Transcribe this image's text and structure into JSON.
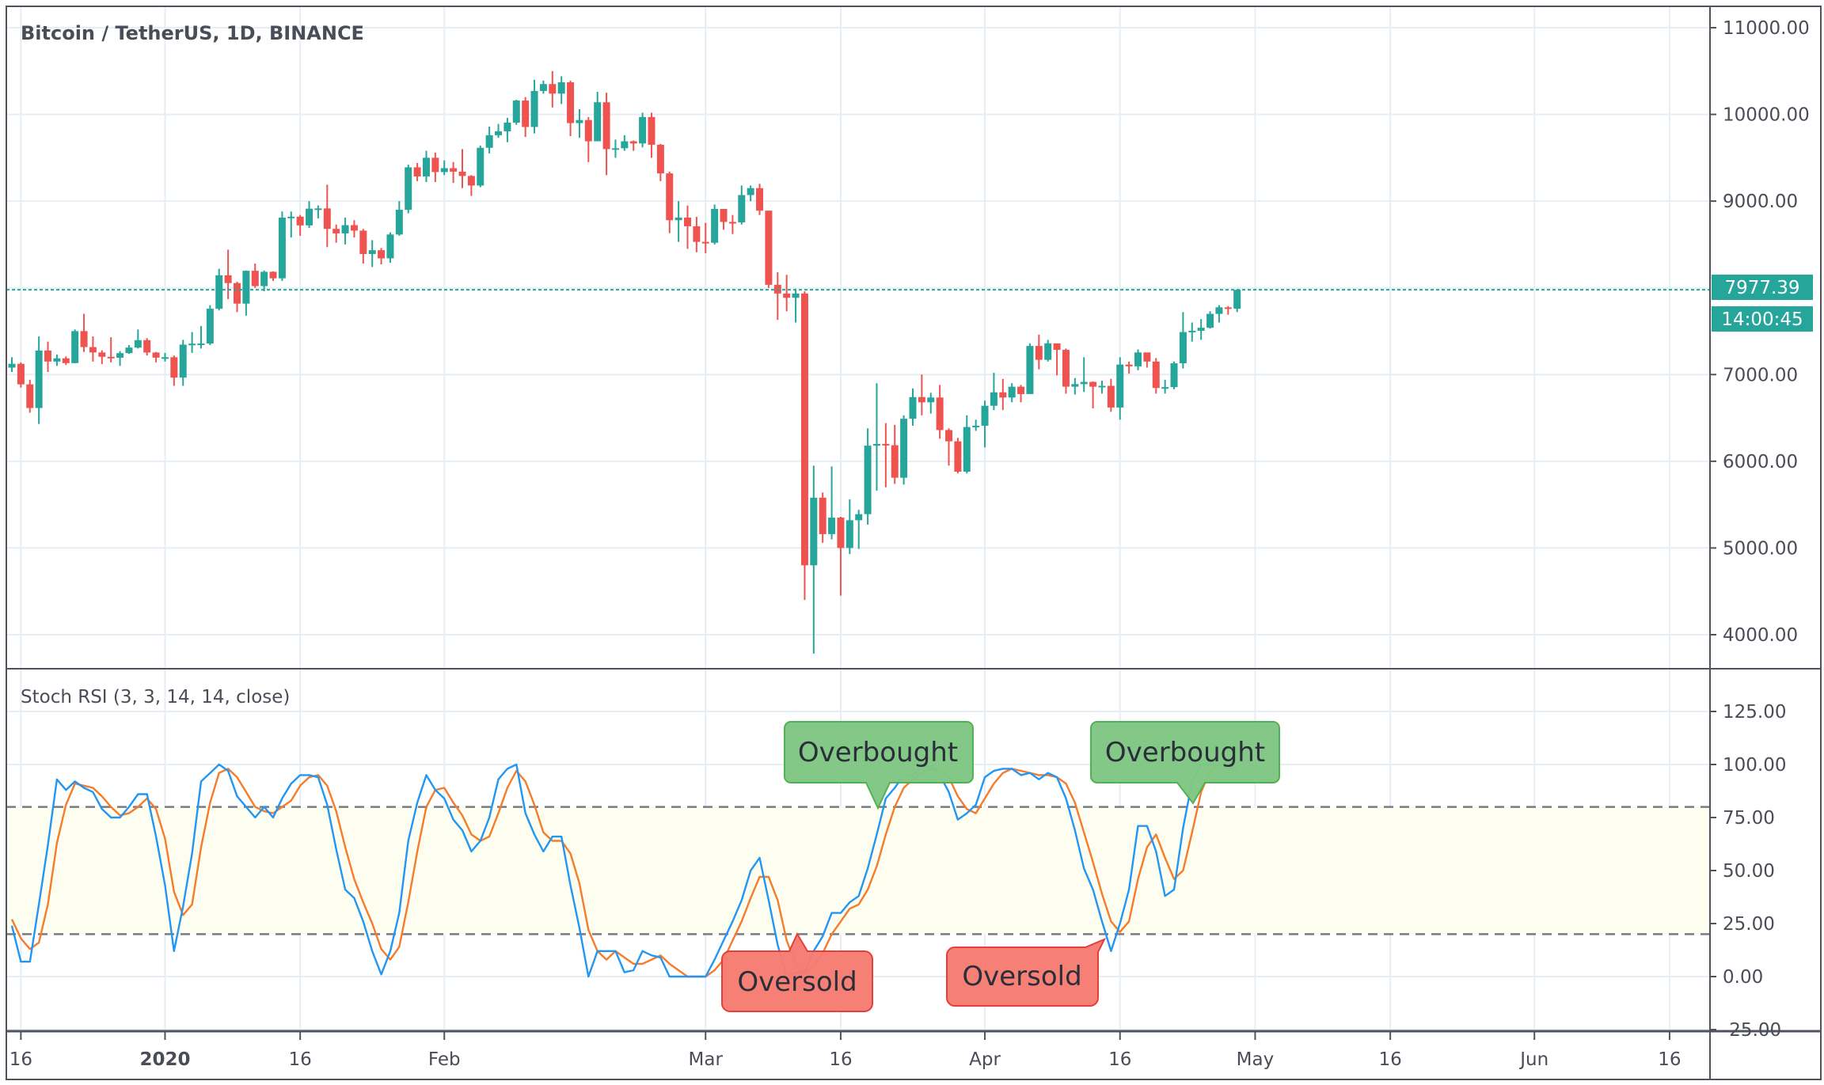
{
  "header": {
    "title": "Bitcoin / TetherUS, 1D, BINANCE"
  },
  "indicator": {
    "title": "Stoch RSI (3, 3, 14, 14, close)"
  },
  "current_price": {
    "label": "7977.39",
    "value": 7977.39,
    "countdown": "14:00:45"
  },
  "annotations": {
    "overbought_1": "Overbought",
    "overbought_2": "Overbought",
    "oversold_1": "Oversold",
    "oversold_2": "Oversold"
  },
  "colors": {
    "up": "#26a69a",
    "down": "#ef5350",
    "k": "#2196f3",
    "d": "#f57c2a",
    "grid": "#e6eef5",
    "band": "#fdfdf0",
    "ob": "#81c784",
    "os": "#f77c72"
  },
  "chart_data": [
    {
      "type": "candlestick",
      "title": "Bitcoin / TetherUS, 1D, BINANCE",
      "ylim": [
        3374,
        11240
      ],
      "y_ticks": [
        "11000.00",
        "10000.00",
        "9000.00",
        "7000.00",
        "6000.00",
        "5000.00",
        "4000.00"
      ],
      "y_tick_values": [
        11000,
        10000,
        9000,
        7000,
        6000,
        5000,
        4000
      ],
      "first_open": 7080,
      "hlc": [
        [
          7200,
          7030,
          7124
        ],
        [
          7140,
          6850,
          6887
        ],
        [
          6940,
          6560,
          6614
        ],
        [
          7440,
          6430,
          7277
        ],
        [
          7380,
          7030,
          7150
        ],
        [
          7230,
          7100,
          7187
        ],
        [
          7210,
          7110,
          7132
        ],
        [
          7520,
          7130,
          7501
        ],
        [
          7700,
          7260,
          7317
        ],
        [
          7440,
          7150,
          7255
        ],
        [
          7280,
          7120,
          7205
        ],
        [
          7430,
          7140,
          7194
        ],
        [
          7270,
          7100,
          7247
        ],
        [
          7340,
          7240,
          7311
        ],
        [
          7520,
          7300,
          7397
        ],
        [
          7420,
          7220,
          7254
        ],
        [
          7260,
          7140,
          7195
        ],
        [
          7250,
          7150,
          7200
        ],
        [
          7220,
          6870,
          6965
        ],
        [
          7400,
          6870,
          7345
        ],
        [
          7490,
          7250,
          7356
        ],
        [
          7560,
          7300,
          7358
        ],
        [
          7800,
          7340,
          7759
        ],
        [
          8220,
          7740,
          8145
        ],
        [
          8440,
          7870,
          8055
        ],
        [
          8070,
          7720,
          7818
        ],
        [
          8200,
          7680,
          8197
        ],
        [
          8280,
          8000,
          8020
        ],
        [
          8200,
          7960,
          8185
        ],
        [
          8190,
          8080,
          8110
        ],
        [
          8880,
          8080,
          8810
        ],
        [
          8880,
          8580,
          8821
        ],
        [
          8840,
          8600,
          8720
        ],
        [
          9000,
          8690,
          8913
        ],
        [
          8950,
          8800,
          8916
        ],
        [
          9190,
          8470,
          8680
        ],
        [
          8730,
          8520,
          8628
        ],
        [
          8810,
          8500,
          8723
        ],
        [
          8780,
          8580,
          8660
        ],
        [
          8680,
          8280,
          8390
        ],
        [
          8550,
          8240,
          8434
        ],
        [
          8460,
          8270,
          8340
        ],
        [
          8640,
          8290,
          8615
        ],
        [
          9000,
          8600,
          8900
        ],
        [
          9420,
          8860,
          9390
        ],
        [
          9440,
          9230,
          9285
        ],
        [
          9580,
          9220,
          9500
        ],
        [
          9560,
          9220,
          9335
        ],
        [
          9470,
          9300,
          9380
        ],
        [
          9450,
          9210,
          9340
        ],
        [
          9600,
          9150,
          9290
        ],
        [
          9300,
          9060,
          9180
        ],
        [
          9640,
          9160,
          9615
        ],
        [
          9860,
          9550,
          9760
        ],
        [
          9890,
          9730,
          9805
        ],
        [
          9960,
          9680,
          9905
        ],
        [
          10170,
          9880,
          10160
        ],
        [
          10200,
          9740,
          9855
        ],
        [
          10400,
          9780,
          10270
        ],
        [
          10390,
          10240,
          10350
        ],
        [
          10500,
          10080,
          10240
        ],
        [
          10440,
          10120,
          10370
        ],
        [
          10390,
          9750,
          9900
        ],
        [
          10060,
          9730,
          9935
        ],
        [
          9970,
          9450,
          9690
        ],
        [
          10260,
          9710,
          10140
        ],
        [
          10250,
          9300,
          9600
        ],
        [
          9710,
          9500,
          9610
        ],
        [
          9760,
          9580,
          9690
        ],
        [
          9700,
          9580,
          9665
        ],
        [
          10020,
          9620,
          9970
        ],
        [
          10020,
          9500,
          9650
        ],
        [
          9660,
          9230,
          9320
        ],
        [
          9340,
          8630,
          8780
        ],
        [
          9000,
          8530,
          8810
        ],
        [
          8950,
          8450,
          8710
        ],
        [
          8820,
          8410,
          8530
        ],
        [
          8750,
          8400,
          8520
        ],
        [
          8960,
          8500,
          8910
        ],
        [
          8910,
          8670,
          8760
        ],
        [
          8840,
          8620,
          8755
        ],
        [
          9180,
          8730,
          9070
        ],
        [
          9180,
          9000,
          9150
        ],
        [
          9200,
          8840,
          8890
        ],
        [
          8890,
          8000,
          8035
        ],
        [
          8180,
          7630,
          7935
        ],
        [
          8150,
          7730,
          7885
        ],
        [
          7990,
          7600,
          7935
        ],
        [
          7960,
          4400,
          4800
        ],
        [
          5950,
          3782,
          5580
        ],
        [
          5640,
          5060,
          5160
        ],
        [
          5940,
          5100,
          5350
        ],
        [
          5360,
          4450,
          5000
        ],
        [
          5560,
          4930,
          5320
        ],
        [
          5440,
          4990,
          5390
        ],
        [
          6380,
          5270,
          6180
        ],
        [
          6900,
          5660,
          6200
        ],
        [
          6440,
          5700,
          6185
        ],
        [
          6420,
          5740,
          5810
        ],
        [
          6530,
          5730,
          6490
        ],
        [
          6840,
          6410,
          6740
        ],
        [
          7000,
          6530,
          6680
        ],
        [
          6790,
          6550,
          6735
        ],
        [
          6880,
          6260,
          6360
        ],
        [
          6380,
          5950,
          6230
        ],
        [
          6270,
          5860,
          5880
        ],
        [
          6530,
          5860,
          6395
        ],
        [
          6480,
          6350,
          6410
        ],
        [
          6700,
          6160,
          6640
        ],
        [
          7020,
          6590,
          6795
        ],
        [
          6950,
          6590,
          6735
        ],
        [
          6900,
          6680,
          6860
        ],
        [
          6880,
          6680,
          6775
        ],
        [
          7360,
          6780,
          7330
        ],
        [
          7460,
          7060,
          7170
        ],
        [
          7400,
          7150,
          7360
        ],
        [
          7350,
          6990,
          7285
        ],
        [
          7300,
          6780,
          6860
        ],
        [
          6960,
          6770,
          6890
        ],
        [
          7200,
          6800,
          6915
        ],
        [
          6920,
          6610,
          6860
        ],
        [
          6930,
          6780,
          6870
        ],
        [
          6950,
          6570,
          6620
        ],
        [
          7200,
          6480,
          7115
        ],
        [
          7150,
          7010,
          7095
        ],
        [
          7290,
          7050,
          7255
        ],
        [
          7230,
          7080,
          7150
        ],
        [
          7190,
          6780,
          6845
        ],
        [
          6940,
          6780,
          6855
        ],
        [
          7150,
          6830,
          7130
        ],
        [
          7720,
          7070,
          7490
        ],
        [
          7600,
          7380,
          7505
        ],
        [
          7640,
          7400,
          7540
        ],
        [
          7730,
          7530,
          7700
        ],
        [
          7800,
          7600,
          7775
        ],
        [
          7790,
          7690,
          7760
        ],
        [
          7980,
          7720,
          7977
        ]
      ]
    },
    {
      "type": "line",
      "title": "Stoch RSI (3, 3, 14, 14, close)",
      "ylim": [
        -25,
        135
      ],
      "y_ticks": [
        "125.00",
        "100.00",
        "75.00",
        "50.00",
        "25.00",
        "0.00",
        "-25.00"
      ],
      "y_tick_values": [
        125,
        100,
        75,
        50,
        25,
        0,
        -25
      ],
      "bands": [
        20,
        80
      ],
      "series": [
        {
          "name": "K",
          "values": [
            24,
            7,
            7,
            34,
            62,
            93,
            88,
            92,
            89,
            87,
            79,
            75,
            75,
            80,
            86,
            86,
            66,
            43,
            12,
            33,
            58,
            92,
            96,
            100,
            97,
            85,
            80,
            75,
            80,
            75,
            84,
            91,
            95,
            95,
            94,
            81,
            60,
            41,
            37,
            26,
            12,
            1,
            12,
            30,
            64,
            82,
            95,
            88,
            84,
            74,
            69,
            59,
            64,
            75,
            93,
            98,
            100,
            77,
            67,
            59,
            66,
            66,
            43,
            23,
            0,
            12,
            12,
            12,
            2,
            3,
            12,
            10,
            9,
            0,
            0,
            0,
            0,
            0,
            8,
            17,
            26,
            36,
            50,
            56,
            36,
            15,
            0,
            2,
            2,
            12,
            19,
            30,
            30,
            35,
            38,
            51,
            67,
            84,
            89,
            95,
            95,
            99,
            99,
            95,
            87,
            74,
            77,
            81,
            94,
            97,
            98,
            98,
            95,
            96,
            93,
            96,
            94,
            84,
            69,
            51,
            41,
            26,
            12,
            25,
            41,
            71,
            71,
            59,
            38,
            41,
            70,
            92,
            100,
            100,
            100,
            98,
            98
          ]
        },
        {
          "name": "D",
          "values": [
            27,
            18,
            13,
            16,
            34,
            63,
            81,
            91,
            90,
            89,
            85,
            80,
            76,
            77,
            80,
            84,
            79,
            65,
            40,
            29,
            34,
            61,
            82,
            96,
            98,
            94,
            87,
            80,
            78,
            77,
            80,
            83,
            90,
            94,
            95,
            90,
            78,
            61,
            46,
            35,
            25,
            13,
            8,
            14,
            35,
            59,
            80,
            88,
            89,
            82,
            76,
            67,
            64,
            66,
            77,
            89,
            97,
            92,
            81,
            68,
            64,
            64,
            58,
            44,
            22,
            12,
            8,
            12,
            9,
            6,
            6,
            8,
            10,
            6,
            3,
            0,
            0,
            0,
            3,
            8,
            17,
            26,
            37,
            47,
            47,
            36,
            17,
            6,
            1,
            5,
            11,
            20,
            26,
            32,
            34,
            41,
            52,
            67,
            80,
            89,
            93,
            96,
            98,
            98,
            94,
            85,
            79,
            77,
            84,
            91,
            96,
            98,
            97,
            96,
            95,
            95,
            94,
            91,
            82,
            68,
            54,
            39,
            26,
            21,
            26,
            46,
            61,
            67,
            56,
            46,
            50,
            68,
            87,
            97,
            100,
            99,
            99
          ]
        }
      ]
    },
    {
      "type": "time_axis",
      "first_day": "Dec 15 2019",
      "ticks": [
        {
          "label": "16",
          "day": 1,
          "bold": false
        },
        {
          "label": "2020",
          "day": 17,
          "bold": true
        },
        {
          "label": "16",
          "day": 32,
          "bold": false
        },
        {
          "label": "Feb",
          "day": 48,
          "bold": false
        },
        {
          "label": "Mar",
          "day": 77,
          "bold": false
        },
        {
          "label": "16",
          "day": 92,
          "bold": false
        },
        {
          "label": "Apr",
          "day": 108,
          "bold": false
        },
        {
          "label": "16",
          "day": 123,
          "bold": false
        },
        {
          "label": "May",
          "day": 138,
          "bold": false
        },
        {
          "label": "16",
          "day": 153,
          "bold": false
        },
        {
          "label": "Jun",
          "day": 169,
          "bold": false
        },
        {
          "label": "16",
          "day": 184,
          "bold": false
        }
      ]
    }
  ]
}
